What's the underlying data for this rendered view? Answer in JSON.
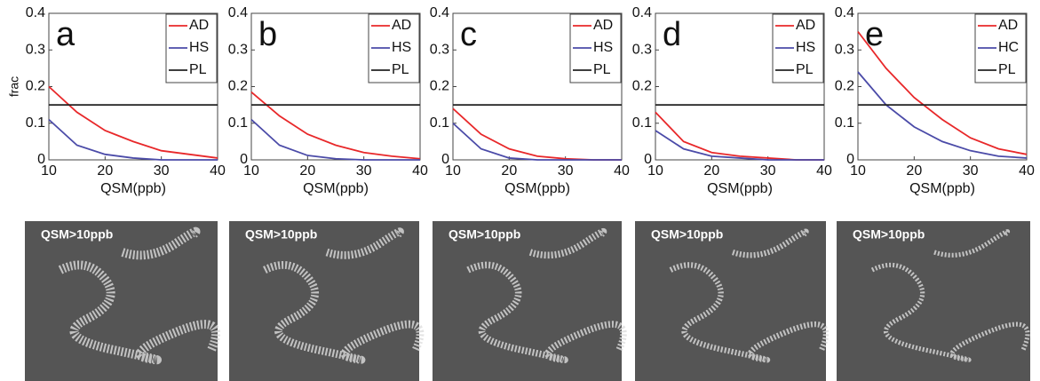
{
  "chart_data": [
    {
      "type": "line",
      "panel": "a",
      "ylabel": "frac",
      "xlabel": "QSM(ppb)",
      "x": [
        10,
        15,
        20,
        25,
        30,
        35,
        40
      ],
      "series": [
        {
          "name": "AD",
          "color": "#e8282a",
          "values": [
            0.2,
            0.13,
            0.08,
            0.05,
            0.025,
            0.015,
            0.005
          ]
        },
        {
          "name": "HS",
          "color": "#4b4ba8",
          "values": [
            0.11,
            0.04,
            0.015,
            0.005,
            0,
            0,
            0
          ]
        },
        {
          "name": "PL",
          "color": "#222222",
          "values": [
            0.15,
            0.15,
            0.15,
            0.15,
            0.15,
            0.15,
            0.15
          ]
        }
      ],
      "xlim": [
        10,
        40
      ],
      "xticks": [
        10,
        20,
        30,
        40
      ],
      "ylim": [
        0,
        0.4
      ],
      "yticks": [
        0,
        0.1,
        0.2,
        0.3,
        0.4
      ],
      "legend": "top-right"
    },
    {
      "type": "line",
      "panel": "b",
      "xlabel": "QSM(ppb)",
      "x": [
        10,
        15,
        20,
        25,
        30,
        35,
        40
      ],
      "series": [
        {
          "name": "AD",
          "color": "#e8282a",
          "values": [
            0.185,
            0.12,
            0.07,
            0.04,
            0.02,
            0.01,
            0.003
          ]
        },
        {
          "name": "HS",
          "color": "#4b4ba8",
          "values": [
            0.11,
            0.04,
            0.012,
            0.003,
            0,
            0,
            0
          ]
        },
        {
          "name": "PL",
          "color": "#222222",
          "values": [
            0.15,
            0.15,
            0.15,
            0.15,
            0.15,
            0.15,
            0.15
          ]
        }
      ],
      "xlim": [
        10,
        40
      ],
      "xticks": [
        10,
        20,
        30,
        40
      ],
      "ylim": [
        0,
        0.4
      ],
      "yticks": [
        0,
        0.1,
        0.2,
        0.3,
        0.4
      ],
      "legend": "top-right"
    },
    {
      "type": "line",
      "panel": "c",
      "xlabel": "QSM(ppb)",
      "x": [
        10,
        15,
        20,
        25,
        30,
        35,
        40
      ],
      "series": [
        {
          "name": "AD",
          "color": "#e8282a",
          "values": [
            0.14,
            0.07,
            0.03,
            0.01,
            0.003,
            0,
            0
          ]
        },
        {
          "name": "HS",
          "color": "#4b4ba8",
          "values": [
            0.1,
            0.03,
            0.005,
            0,
            0,
            0,
            0
          ]
        },
        {
          "name": "PL",
          "color": "#222222",
          "values": [
            0.15,
            0.15,
            0.15,
            0.15,
            0.15,
            0.15,
            0.15
          ]
        }
      ],
      "xlim": [
        10,
        40
      ],
      "xticks": [
        10,
        20,
        30,
        40
      ],
      "ylim": [
        0,
        0.4
      ],
      "yticks": [
        0,
        0.1,
        0.2,
        0.3,
        0.4
      ],
      "legend": "top-right"
    },
    {
      "type": "line",
      "panel": "d",
      "xlabel": "QSM(ppb)",
      "x": [
        10,
        15,
        20,
        25,
        30,
        35,
        40
      ],
      "series": [
        {
          "name": "AD",
          "color": "#e8282a",
          "values": [
            0.13,
            0.05,
            0.02,
            0.01,
            0.005,
            0,
            0
          ]
        },
        {
          "name": "HS",
          "color": "#4b4ba8",
          "values": [
            0.08,
            0.03,
            0.01,
            0.005,
            0,
            0,
            0
          ]
        },
        {
          "name": "PL",
          "color": "#222222",
          "values": [
            0.15,
            0.15,
            0.15,
            0.15,
            0.15,
            0.15,
            0.15
          ]
        }
      ],
      "xlim": [
        10,
        40
      ],
      "xticks": [
        10,
        20,
        30,
        40
      ],
      "ylim": [
        0,
        0.4
      ],
      "yticks": [
        0,
        0.1,
        0.2,
        0.3,
        0.4
      ],
      "legend": "top-right"
    },
    {
      "type": "line",
      "panel": "e",
      "xlabel": "QSM(ppb)",
      "x": [
        10,
        15,
        20,
        25,
        30,
        35,
        40
      ],
      "series": [
        {
          "name": "AD",
          "color": "#e8282a",
          "values": [
            0.35,
            0.25,
            0.17,
            0.11,
            0.06,
            0.03,
            0.015
          ]
        },
        {
          "name": "HC",
          "color": "#4b4ba8",
          "values": [
            0.24,
            0.15,
            0.09,
            0.05,
            0.025,
            0.01,
            0.005
          ]
        },
        {
          "name": "PL",
          "color": "#222222",
          "values": [
            0.15,
            0.15,
            0.15,
            0.15,
            0.15,
            0.15,
            0.15
          ]
        }
      ],
      "xlim": [
        10,
        40
      ],
      "xticks": [
        10,
        20,
        30,
        40
      ],
      "ylim": [
        0,
        0.4
      ],
      "yticks": [
        0,
        0.1,
        0.2,
        0.3,
        0.4
      ],
      "legend": "top-right"
    }
  ],
  "images": [
    {
      "label": "QSM>10ppb"
    },
    {
      "label": "QSM>10ppb"
    },
    {
      "label": "QSM>10ppb"
    },
    {
      "label": "QSM>10ppb"
    },
    {
      "label": "QSM>10ppb"
    }
  ]
}
